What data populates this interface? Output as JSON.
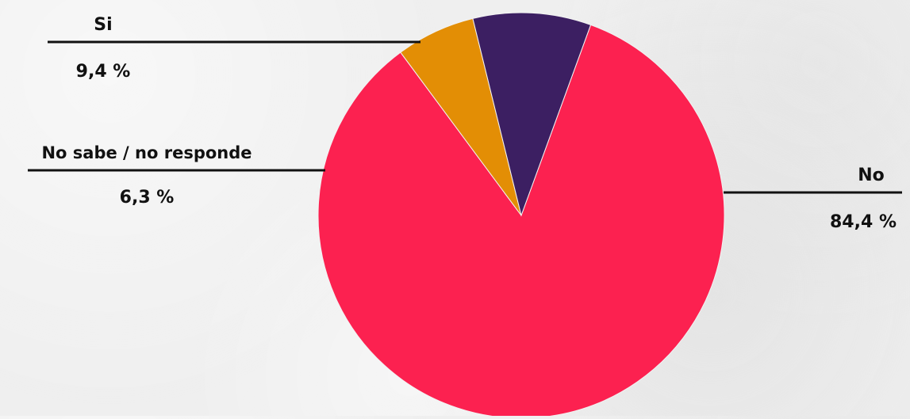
{
  "chart_data": {
    "type": "pie",
    "title": "",
    "slices": [
      {
        "label": "No",
        "value": 84.4,
        "display": "84,4 %",
        "color": "#fc2150"
      },
      {
        "label": "No sabe / no responde",
        "value": 6.3,
        "display": "6,3 %",
        "color": "#e38e05"
      },
      {
        "label": "Si",
        "value": 9.4,
        "display": "9,4 %",
        "color": "#3c1f62"
      }
    ],
    "start_angle_deg": -70,
    "direction": "clockwise",
    "legend": "none",
    "labels": "outside-with-leader-lines"
  }
}
